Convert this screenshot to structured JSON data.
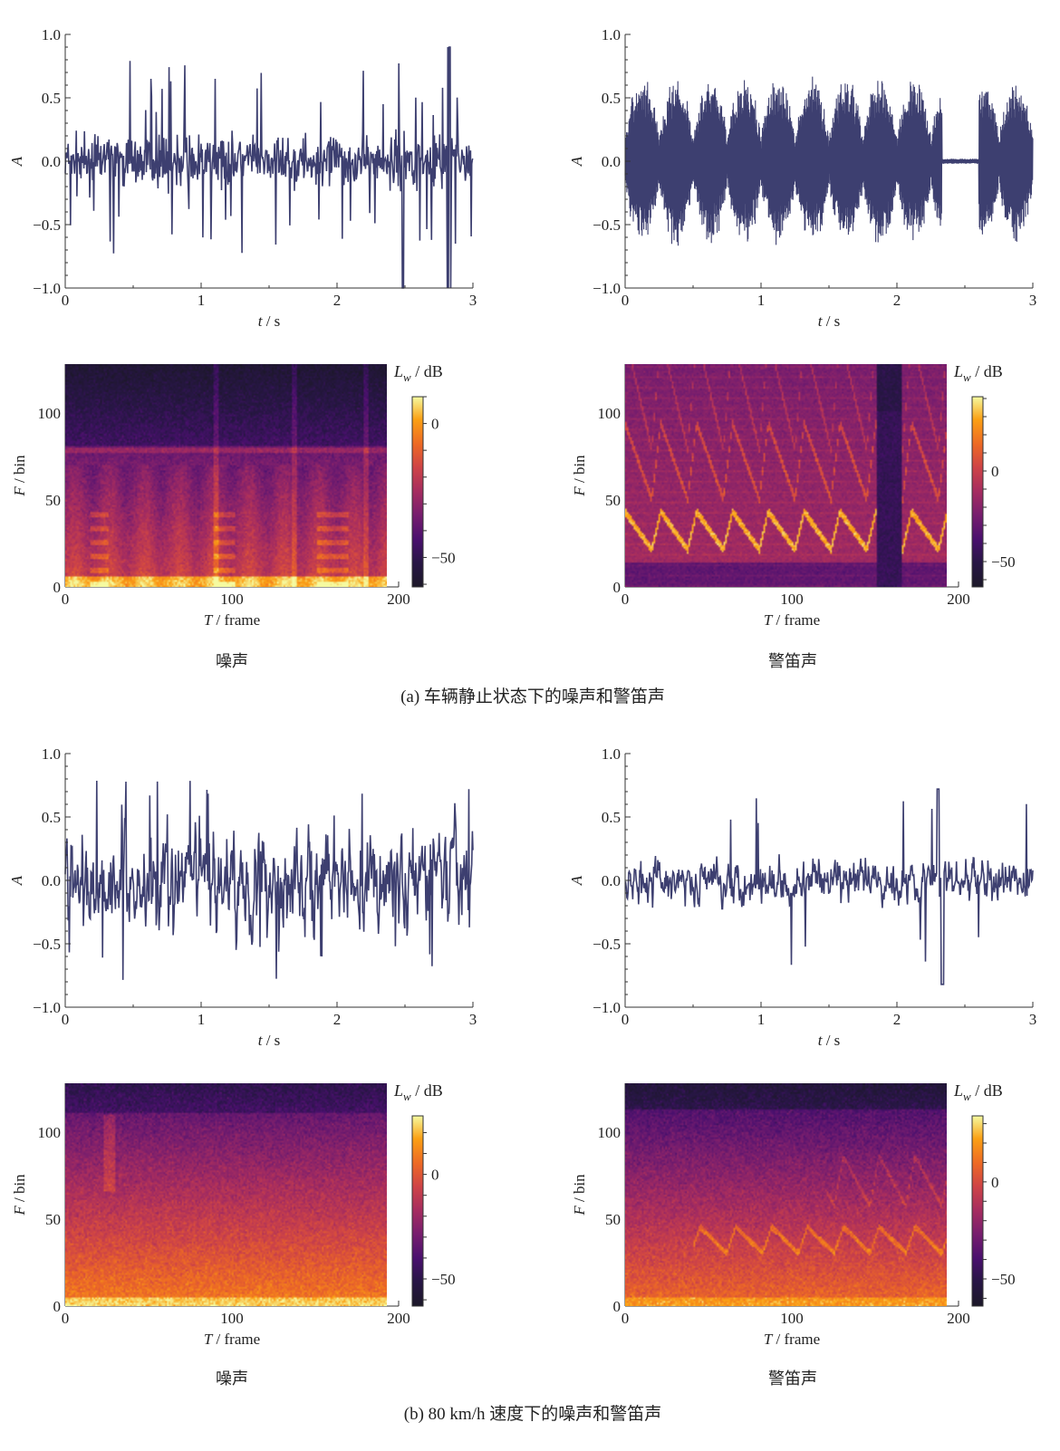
{
  "figure": {
    "caption_a": "(a)  车辆静止状态下的噪声和警笛声",
    "caption_b": "(b)  80 km/h 速度下的噪声和警笛声",
    "sub_noise": "噪声",
    "sub_siren": "警笛声"
  },
  "colors": {
    "waveform": "#3d3f70",
    "axis": "#333333"
  },
  "axis_text": {
    "wave_y": "A",
    "wave_x_var": "t",
    "wave_x_unit": " / s",
    "spec_y_var": "F",
    "spec_y_unit": " / bin",
    "spec_x_var": "T",
    "spec_x_unit": " / frame",
    "cbar_var": "L",
    "cbar_sub": "w",
    "cbar_unit": " / dB"
  },
  "chart_data": [
    {
      "id": "a_noise_wave",
      "type": "line",
      "title": "噪声 (静止)",
      "xlabel": "t / s",
      "ylabel": "A",
      "xlim": [
        0,
        3
      ],
      "ylim": [
        -1,
        1
      ],
      "xticks": [
        "0",
        "1",
        "2",
        "3"
      ],
      "yticks": [
        "1.0",
        "0.5",
        "0.0",
        "−0.5",
        "−1.0"
      ],
      "signal": "broadband noise",
      "peak": 0.85,
      "min": -1.0
    },
    {
      "id": "a_siren_wave",
      "type": "line",
      "title": "警笛声 (静止)",
      "xlabel": "t / s",
      "ylabel": "A",
      "xlim": [
        0,
        3
      ],
      "ylim": [
        -1,
        1
      ],
      "xticks": [
        "0",
        "1",
        "2",
        "3"
      ],
      "yticks": [
        "1.0",
        "0.5",
        "0.0",
        "−0.5",
        "−1.0"
      ],
      "signal": "periodic siren bursts",
      "burst_period_s": 0.25,
      "silent_interval_s": [
        2.35,
        2.6
      ],
      "peak": 0.75
    },
    {
      "id": "a_noise_spec",
      "type": "heatmap",
      "xlabel": "T / frame",
      "ylabel": "F / bin",
      "xlim": [
        0,
        200
      ],
      "ylim": [
        0,
        128
      ],
      "frames": 193,
      "bins": 128,
      "xticks": [
        "0",
        "100",
        "200"
      ],
      "yticks": [
        "0",
        "50",
        "100"
      ],
      "colorbar": {
        "label": "Lw / dB",
        "range": [
          -61,
          10
        ],
        "ticks": [
          "0",
          "−50"
        ]
      }
    },
    {
      "id": "a_siren_spec",
      "type": "heatmap",
      "xlabel": "T / frame",
      "ylabel": "F / bin",
      "xlim": [
        0,
        200
      ],
      "ylim": [
        0,
        128
      ],
      "frames": 193,
      "bins": 128,
      "xticks": [
        "0",
        "100",
        "200"
      ],
      "yticks": [
        "0",
        "50",
        "100"
      ],
      "colorbar": {
        "label": "Lw / dB",
        "range": [
          -64,
          41
        ],
        "ticks": [
          "0",
          "−50"
        ]
      },
      "gap_frames": [
        150,
        166
      ]
    },
    {
      "id": "b_noise_wave",
      "type": "line",
      "title": "噪声 (80 km/h)",
      "xlabel": "t / s",
      "ylabel": "A",
      "xlim": [
        0,
        3
      ],
      "ylim": [
        -1,
        1
      ],
      "xticks": [
        "0",
        "1",
        "2",
        "3"
      ],
      "yticks": [
        "1.0",
        "0.5",
        "0.0",
        "−0.5",
        "−1.0"
      ],
      "signal": "low-frequency noise",
      "peak": 0.95,
      "min": -0.8
    },
    {
      "id": "b_siren_wave",
      "type": "line",
      "title": "警笛声 (80 km/h)",
      "xlabel": "t / s",
      "ylabel": "A",
      "xlim": [
        0,
        3
      ],
      "ylim": [
        -1,
        1
      ],
      "xticks": [
        "0",
        "1",
        "2",
        "3"
      ],
      "yticks": [
        "1.0",
        "0.5",
        "0.0",
        "−0.5",
        "−1.0"
      ],
      "signal": "siren buried in noise",
      "peak": 0.72,
      "min": -0.82
    },
    {
      "id": "b_noise_spec",
      "type": "heatmap",
      "xlabel": "T / frame",
      "ylabel": "F / bin",
      "xlim": [
        0,
        200
      ],
      "ylim": [
        0,
        128
      ],
      "frames": 193,
      "bins": 128,
      "xticks": [
        "0",
        "100",
        "200"
      ],
      "yticks": [
        "0",
        "50",
        "100"
      ],
      "colorbar": {
        "label": "Lw / dB",
        "range": [
          -63,
          28
        ],
        "ticks": [
          "0",
          "−50"
        ]
      }
    },
    {
      "id": "b_siren_spec",
      "type": "heatmap",
      "xlabel": "T / frame",
      "ylabel": "F / bin",
      "xlim": [
        0,
        200
      ],
      "ylim": [
        0,
        128
      ],
      "frames": 193,
      "bins": 128,
      "xticks": [
        "0",
        "100",
        "200"
      ],
      "yticks": [
        "0",
        "50",
        "100"
      ],
      "colorbar": {
        "label": "Lw / dB",
        "range": [
          -64,
          34
        ],
        "ticks": [
          "0",
          "−50"
        ]
      }
    }
  ]
}
